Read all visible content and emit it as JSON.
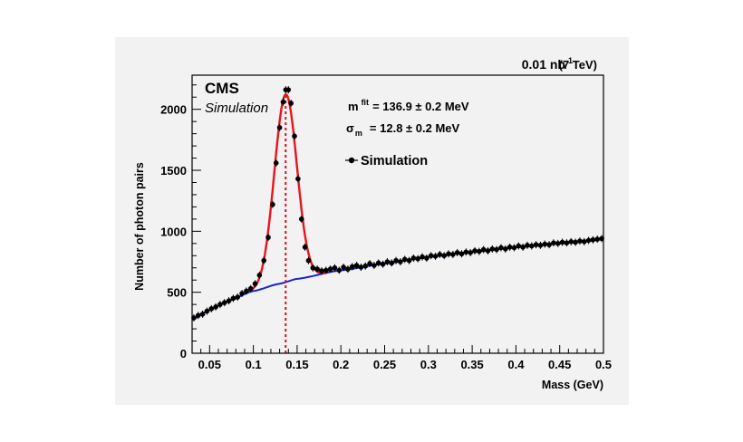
{
  "chart_data": {
    "type": "scatter",
    "experiment": "CMS",
    "experiment_sub": "Simulation",
    "lumi": "0.01 nb",
    "lumi_exp": "-1",
    "energy": "(7 TeV)",
    "xlabel": "Mass (GeV)",
    "ylabel": "Number of photon pairs",
    "xlim": [
      0.03,
      0.5
    ],
    "ylim": [
      0,
      2280
    ],
    "x_ticks": [
      "0.05",
      "0.1",
      "0.15",
      "0.2",
      "0.25",
      "0.3",
      "0.35",
      "0.4",
      "0.45",
      "0.5"
    ],
    "y_ticks": [
      "0",
      "500",
      "1000",
      "1500",
      "2000"
    ],
    "grid": false,
    "legend_position": "top-right",
    "fit_mass_label": "m",
    "fit_mass_sup": "fit",
    "fit_mass_text": "= 136.9 ± 0.2 MeV",
    "sigma_label": "σ",
    "sigma_sub": "m",
    "sigma_text": "= 12.8 ± 0.2 MeV",
    "legend_entry": "Simulation",
    "peak_mass": 0.1369,
    "fit": {
      "signal_amplitude": 1540,
      "mean": 0.1369,
      "sigma": 0.0128,
      "background_description": "smooth rising curve",
      "background_points": [
        [
          0.03,
          275
        ],
        [
          0.05,
          355
        ],
        [
          0.07,
          425
        ],
        [
          0.1,
          510
        ],
        [
          0.13,
          570
        ],
        [
          0.15,
          610
        ],
        [
          0.2,
          680
        ],
        [
          0.25,
          735
        ],
        [
          0.3,
          790
        ],
        [
          0.35,
          830
        ],
        [
          0.4,
          870
        ],
        [
          0.45,
          900
        ],
        [
          0.5,
          935
        ]
      ]
    },
    "series": [
      {
        "name": "Simulation",
        "color": "#000000",
        "points": [
          [
            0.032,
            290
          ],
          [
            0.037,
            310
          ],
          [
            0.042,
            320
          ],
          [
            0.047,
            345
          ],
          [
            0.052,
            365
          ],
          [
            0.057,
            380
          ],
          [
            0.062,
            400
          ],
          [
            0.067,
            415
          ],
          [
            0.072,
            430
          ],
          [
            0.077,
            450
          ],
          [
            0.082,
            460
          ],
          [
            0.087,
            490
          ],
          [
            0.092,
            510
          ],
          [
            0.097,
            530
          ],
          [
            0.102,
            570
          ],
          [
            0.107,
            640
          ],
          [
            0.112,
            760
          ],
          [
            0.117,
            950
          ],
          [
            0.122,
            1220
          ],
          [
            0.126,
            1560
          ],
          [
            0.13,
            1850
          ],
          [
            0.134,
            2060
          ],
          [
            0.137,
            2160
          ],
          [
            0.14,
            2160
          ],
          [
            0.143,
            2050
          ],
          [
            0.147,
            1780
          ],
          [
            0.151,
            1430
          ],
          [
            0.155,
            1100
          ],
          [
            0.159,
            870
          ],
          [
            0.163,
            760
          ],
          [
            0.168,
            700
          ],
          [
            0.173,
            690
          ],
          [
            0.178,
            675
          ],
          [
            0.183,
            680
          ],
          [
            0.188,
            690
          ],
          [
            0.193,
            700
          ],
          [
            0.198,
            680
          ],
          [
            0.203,
            705
          ],
          [
            0.208,
            690
          ],
          [
            0.213,
            710
          ],
          [
            0.218,
            720
          ],
          [
            0.223,
            705
          ],
          [
            0.228,
            715
          ],
          [
            0.233,
            735
          ],
          [
            0.238,
            720
          ],
          [
            0.243,
            740
          ],
          [
            0.248,
            730
          ],
          [
            0.253,
            750
          ],
          [
            0.258,
            740
          ],
          [
            0.263,
            760
          ],
          [
            0.268,
            750
          ],
          [
            0.273,
            770
          ],
          [
            0.278,
            760
          ],
          [
            0.283,
            780
          ],
          [
            0.288,
            775
          ],
          [
            0.293,
            790
          ],
          [
            0.298,
            780
          ],
          [
            0.303,
            800
          ],
          [
            0.308,
            795
          ],
          [
            0.313,
            810
          ],
          [
            0.318,
            800
          ],
          [
            0.323,
            815
          ],
          [
            0.328,
            810
          ],
          [
            0.333,
            825
          ],
          [
            0.338,
            815
          ],
          [
            0.343,
            830
          ],
          [
            0.348,
            825
          ],
          [
            0.353,
            840
          ],
          [
            0.358,
            835
          ],
          [
            0.363,
            850
          ],
          [
            0.368,
            840
          ],
          [
            0.373,
            855
          ],
          [
            0.378,
            850
          ],
          [
            0.383,
            865
          ],
          [
            0.388,
            855
          ],
          [
            0.393,
            870
          ],
          [
            0.398,
            865
          ],
          [
            0.403,
            880
          ],
          [
            0.408,
            870
          ],
          [
            0.413,
            885
          ],
          [
            0.418,
            880
          ],
          [
            0.423,
            890
          ],
          [
            0.428,
            885
          ],
          [
            0.433,
            895
          ],
          [
            0.438,
            890
          ],
          [
            0.443,
            905
          ],
          [
            0.448,
            900
          ],
          [
            0.453,
            910
          ],
          [
            0.458,
            905
          ],
          [
            0.463,
            915
          ],
          [
            0.468,
            910
          ],
          [
            0.473,
            920
          ],
          [
            0.478,
            915
          ],
          [
            0.483,
            925
          ],
          [
            0.488,
            930
          ],
          [
            0.493,
            935
          ],
          [
            0.498,
            940
          ]
        ]
      }
    ],
    "colors": {
      "signal_fit": "#e8141a",
      "background_fit": "#1a24d6",
      "peak_line": "#d6141a",
      "markers": "#000000"
    }
  }
}
